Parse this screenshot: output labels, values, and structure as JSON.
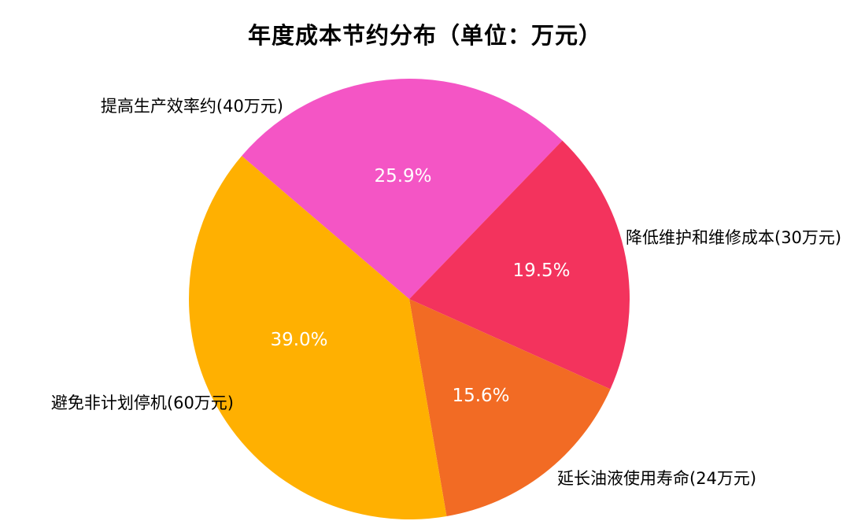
{
  "chart_data": {
    "type": "pie",
    "title": "年度成本节约分布（单位：万元）",
    "unit": "万元",
    "start_angle_deg": 139.5,
    "direction": "clockwise",
    "legend_position": "none",
    "background_color": "#ffffff",
    "title_color": "#000000",
    "label_color": "#000000",
    "pct_text_color": "#ffffff",
    "slices": [
      {
        "label": "提高生产效率约(40万元)",
        "value": 40,
        "pct_label": "25.9%",
        "color": "#F455C5"
      },
      {
        "label": "降低维护和维修成本(30万元)",
        "value": 30,
        "pct_label": "19.5%",
        "color": "#F3335D"
      },
      {
        "label": "延长油液使用寿命(24万元)",
        "value": 24,
        "pct_label": "15.6%",
        "color": "#F26B24"
      },
      {
        "label": "避免非计划停机(60万元)",
        "value": 60,
        "pct_label": "39.0%",
        "color": "#FFB001"
      }
    ]
  }
}
